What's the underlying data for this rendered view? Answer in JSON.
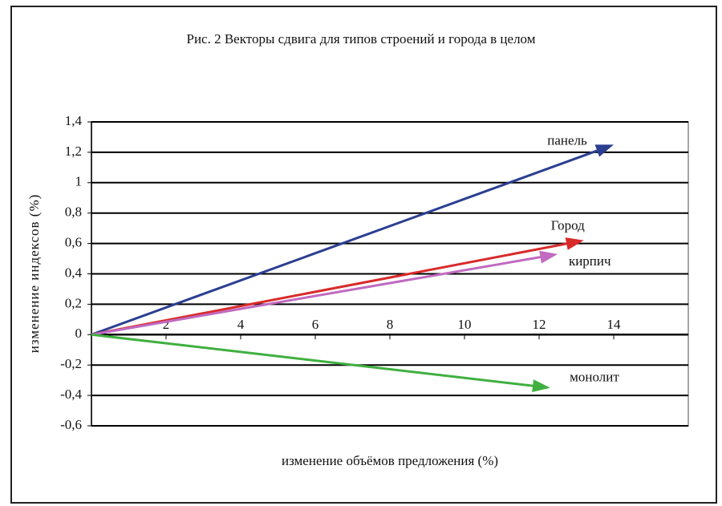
{
  "chart_data": {
    "type": "vector",
    "title": "Рис. 2 Векторы сдвига для типов строений и города в целом",
    "x_label": "изменение объёмов предложения (%)",
    "y_label": "изменение индексов (%)",
    "xlim": [
      0,
      16
    ],
    "xticks": [
      2,
      4,
      6,
      8,
      10,
      12,
      14
    ],
    "ylim": [
      -0.6,
      1.4
    ],
    "yticks": [
      {
        "value": -0.6,
        "label": "-0,6"
      },
      {
        "value": -0.4,
        "label": "-0,4"
      },
      {
        "value": -0.2,
        "label": "-0,2"
      },
      0,
      {
        "value": 0.2,
        "label": "0,2"
      },
      {
        "value": 0.4,
        "label": "0,4"
      },
      {
        "value": 0.6,
        "label": "0,6"
      },
      {
        "value": 0.8,
        "label": "0,8"
      },
      1,
      {
        "value": 1.2,
        "label": "1,2"
      },
      {
        "value": 1.4,
        "label": "1,4"
      }
    ],
    "grid": true,
    "series": [
      {
        "name": "панель",
        "color": "#2b3f91",
        "x": 14,
        "y": 1.25
      },
      {
        "name": "Город",
        "color": "#d92a2a",
        "x": 13.2,
        "y": 0.62
      },
      {
        "name": "кирпич",
        "color": "#c06ac0",
        "x": 12.5,
        "y": 0.53
      },
      {
        "name": "монолит",
        "color": "#3fb03f",
        "x": 12.3,
        "y": -0.35
      }
    ]
  }
}
